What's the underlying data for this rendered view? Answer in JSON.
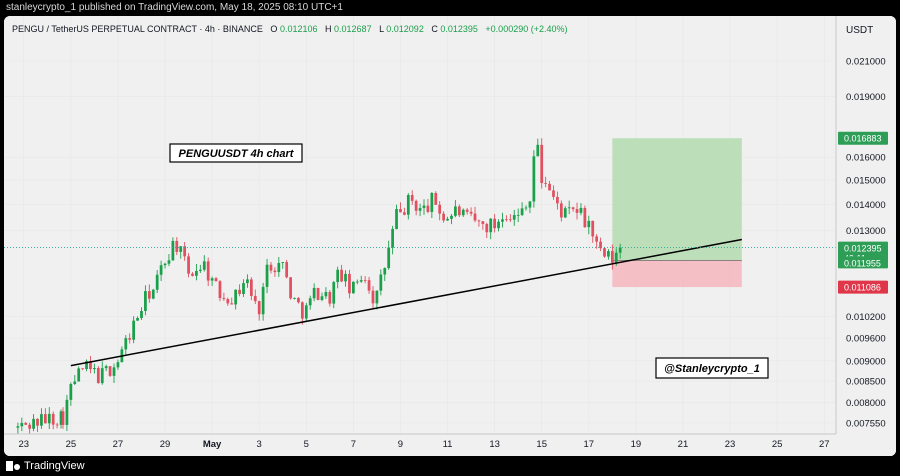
{
  "header": {
    "publisher_line": "stanleycrypto_1 published on TradingView.com, May 18, 2025 08:10 UTC+1"
  },
  "legend": {
    "symbol": "PENGU / TetherUS PERPETUAL CONTRACT · 4h · BINANCE",
    "open_label": "O",
    "open": "0.012106",
    "high_label": "H",
    "high": "0.012687",
    "low_label": "L",
    "low": "0.012092",
    "close_label": "C",
    "close": "0.012395",
    "change": "+0.000290 (+2.40%)"
  },
  "price_axis": {
    "currency": "USDT",
    "ticks": [
      "0.021000",
      "0.019000",
      "0.016000",
      "0.015000",
      "0.014000",
      "0.013000",
      "0.010200",
      "0.009600",
      "0.009000",
      "0.008500",
      "0.008000",
      "0.007550"
    ],
    "badges": {
      "take_profit": "0.016883",
      "last_price": "0.012395",
      "countdown": "49:11",
      "entry": "0.011955",
      "stop_loss": "0.011086"
    }
  },
  "time_axis": {
    "ticks": [
      "23",
      "25",
      "27",
      "29",
      "May",
      "3",
      "5",
      "7",
      "9",
      "11",
      "13",
      "15",
      "17",
      "19",
      "21",
      "23",
      "25",
      "27"
    ]
  },
  "annotations": {
    "chart_title": "PENGUUSDT 4h chart",
    "watermark": "@Stanleycrypto_1"
  },
  "footer": {
    "brand": "TradingView"
  },
  "colors": {
    "up": "#26a69a",
    "up_candle": "#1aa04a",
    "down": "#e05060",
    "profit_zone": "#b6dcb2",
    "loss_zone": "#f4b9c0",
    "background": "#f0f0f0"
  },
  "chart_data": {
    "type": "candlestick",
    "scale": "log",
    "interval": "4h",
    "x_range": [
      "2025-04-22T12:00",
      "2025-05-27T12:00"
    ],
    "y_ticks": [
      0.021,
      0.019,
      0.016,
      0.015,
      0.014,
      0.013,
      0.0102,
      0.0096,
      0.009,
      0.0085,
      0.008,
      0.00755
    ],
    "last_close": 0.012395,
    "trendline": {
      "from": {
        "date": "2025-04-25",
        "price": 0.00888
      },
      "to": {
        "date": "2025-05-23T12:00",
        "price": 0.01268
      }
    },
    "position": {
      "type": "long",
      "from": "2025-05-18",
      "to": "2025-05-23T12:00",
      "entry": 0.011955,
      "take_profit": 0.016883,
      "stop_loss": 0.011086
    },
    "segments": [
      {
        "from": "2025-04-22T18:00",
        "to": "2025-04-24T12:00",
        "price": [
          0.00745,
          0.0076,
          0.0077
        ]
      },
      {
        "from": "2025-04-24T16:00",
        "to": "2025-04-25T12:00",
        "price": [
          0.0077,
          0.00845,
          0.0088
        ]
      },
      {
        "from": "2025-04-25T16:00",
        "to": "2025-04-26T20:00",
        "price": [
          0.0088,
          0.0086,
          0.0089
        ]
      },
      {
        "from": "2025-04-27T00:00",
        "to": "2025-04-28T08:00",
        "price": [
          0.009,
          0.00995,
          0.01095
        ]
      },
      {
        "from": "2025-04-28T12:00",
        "to": "2025-04-29T08:00",
        "price": [
          0.01095,
          0.0118,
          0.0125
        ]
      },
      {
        "from": "2025-04-29T12:00",
        "to": "2025-04-30T12:00",
        "price": [
          0.0125,
          0.0115,
          0.0118
        ]
      },
      {
        "from": "2025-04-30T16:00",
        "to": "2025-05-01T20:00",
        "price": [
          0.0118,
          0.0109,
          0.0108
        ]
      },
      {
        "from": "2025-05-02T00:00",
        "to": "2025-05-02T20:00",
        "price": [
          0.0108,
          0.0114,
          0.0105
        ]
      },
      {
        "from": "2025-05-03T00:00",
        "to": "2025-05-03T20:00",
        "price": [
          0.0105,
          0.0119,
          0.0118
        ]
      },
      {
        "from": "2025-05-04T00:00",
        "to": "2025-05-04T20:00",
        "price": [
          0.0118,
          0.0107,
          0.0104
        ]
      },
      {
        "from": "2025-05-05T00:00",
        "to": "2025-05-05T20:00",
        "price": [
          0.0104,
          0.011,
          0.0108
        ]
      },
      {
        "from": "2025-05-06T00:00",
        "to": "2025-05-06T20:00",
        "price": [
          0.0108,
          0.0116,
          0.011
        ]
      },
      {
        "from": "2025-05-07T00:00",
        "to": "2025-05-07T20:00",
        "price": [
          0.011,
          0.0116,
          0.0108
        ]
      },
      {
        "from": "2025-05-08T00:00",
        "to": "2025-05-08T20:00",
        "price": [
          0.0108,
          0.012,
          0.0136
        ]
      },
      {
        "from": "2025-05-09T00:00",
        "to": "2025-05-09T20:00",
        "price": [
          0.0136,
          0.0142,
          0.0138
        ]
      },
      {
        "from": "2025-05-10T00:00",
        "to": "2025-05-10T20:00",
        "price": [
          0.0138,
          0.0142,
          0.0135
        ]
      },
      {
        "from": "2025-05-11T00:00",
        "to": "2025-05-11T20:00",
        "price": [
          0.0135,
          0.0138,
          0.0134
        ]
      },
      {
        "from": "2025-05-12T00:00",
        "to": "2025-05-12T20:00",
        "price": [
          0.0134,
          0.0132,
          0.0132
        ]
      },
      {
        "from": "2025-05-13T00:00",
        "to": "2025-05-13T20:00",
        "price": [
          0.0132,
          0.0138,
          0.0135
        ]
      },
      {
        "from": "2025-05-14T00:00",
        "to": "2025-05-14T08:00",
        "price": [
          0.0135,
          0.0142
        ]
      },
      {
        "from": "2025-05-14T12:00",
        "to": "2025-05-15T00:00",
        "price": [
          0.0142,
          0.017,
          0.015
        ]
      },
      {
        "from": "2025-05-15T04:00",
        "to": "2025-05-16T00:00",
        "price": [
          0.015,
          0.014,
          0.0136
        ]
      },
      {
        "from": "2025-05-16T04:00",
        "to": "2025-05-16T20:00",
        "price": [
          0.0136,
          0.0138,
          0.0133
        ]
      },
      {
        "from": "2025-05-17T00:00",
        "to": "2025-05-17T20:00",
        "price": [
          0.0133,
          0.0122,
          0.012
        ]
      },
      {
        "from": "2025-05-18T00:00",
        "to": "2025-05-18T08:00",
        "price": [
          0.012,
          0.0121,
          0.012395
        ]
      }
    ]
  }
}
